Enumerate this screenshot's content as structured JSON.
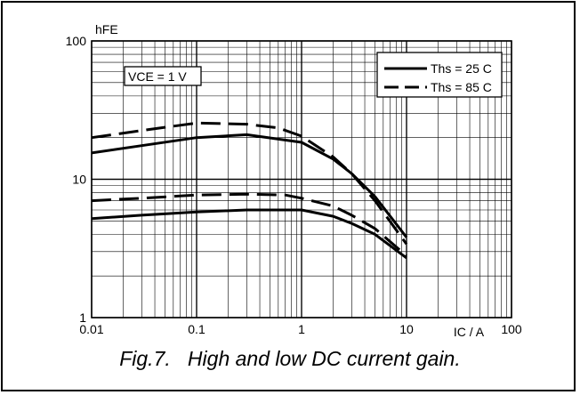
{
  "chart_data": {
    "type": "line",
    "ylabel": "hFE",
    "xlabel": "IC / A",
    "x_scale": "log",
    "y_scale": "log",
    "xlim": [
      0.01,
      100
    ],
    "ylim": [
      1,
      100
    ],
    "x_ticks": [
      "0.01",
      "0.1",
      "1",
      "10",
      "100"
    ],
    "y_ticks": [
      "1",
      "10",
      "100"
    ],
    "grid": true,
    "condition_label": "VCE = 1 V",
    "legend_position": "top-right",
    "legend": [
      {
        "label": "Ths = 25 C",
        "style": "solid"
      },
      {
        "label": "Ths = 85 C",
        "style": "dashed"
      }
    ],
    "series": [
      {
        "name": "Ths = 25 C",
        "group": "high",
        "style": "solid",
        "x": [
          0.01,
          0.03,
          0.1,
          0.3,
          1,
          2,
          3,
          5,
          10
        ],
        "y": [
          15.5,
          17.5,
          20,
          21,
          18.5,
          14,
          11,
          7.5,
          3.8
        ]
      },
      {
        "name": "Ths = 85 C",
        "group": "high",
        "style": "dashed",
        "x": [
          0.01,
          0.03,
          0.1,
          0.3,
          0.6,
          1,
          2,
          3,
          5,
          10
        ],
        "y": [
          20,
          22.5,
          25.5,
          25,
          23.5,
          20.5,
          14.5,
          11,
          7,
          3.4
        ]
      },
      {
        "name": "Ths = 25 C",
        "group": "low",
        "style": "solid",
        "x": [
          0.01,
          0.03,
          0.1,
          0.3,
          1,
          2,
          3,
          5,
          10
        ],
        "y": [
          5.2,
          5.5,
          5.8,
          6,
          6,
          5.4,
          4.8,
          4,
          2.7
        ]
      },
      {
        "name": "Ths = 85 C",
        "group": "low",
        "style": "dashed",
        "x": [
          0.01,
          0.03,
          0.1,
          0.3,
          0.7,
          1,
          2,
          3,
          5,
          10
        ],
        "y": [
          7,
          7.3,
          7.7,
          7.8,
          7.7,
          7.3,
          6.4,
          5.5,
          4.4,
          2.8
        ]
      }
    ]
  },
  "caption": "Fig.7.   High and low DC current gain.",
  "colors": {
    "ink": "#000000",
    "grid": "#000000",
    "paper": "#ffffff"
  }
}
